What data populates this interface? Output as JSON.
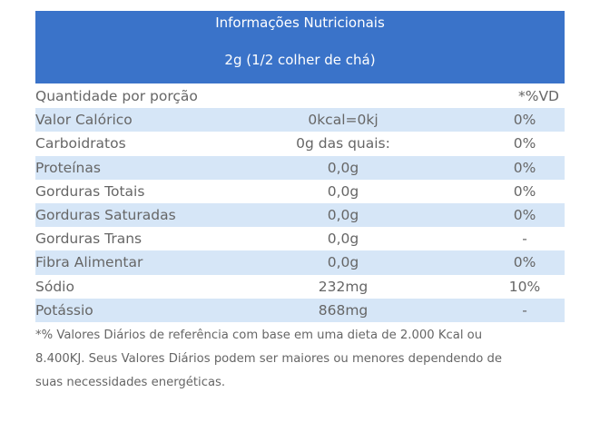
{
  "colors": {
    "header_bg": "#3a73c9",
    "header_text": "#ffffff",
    "stripe": "#d6e6f7",
    "text": "#666666"
  },
  "header": {
    "title": "Informações Nutricionais",
    "serving": "2g (1/2 colher de chá)"
  },
  "table": {
    "header_row": {
      "label": "Quantidade por porção",
      "amount": "",
      "dv": "*%VD"
    },
    "rows": [
      {
        "label": "Valor Calórico",
        "amount": "0kcal=0kj",
        "dv": "0%"
      },
      {
        "label": "Carboidratos",
        "amount": "0g das quais:",
        "dv": "0%"
      },
      {
        "label": "Proteínas",
        "amount": "0,0g",
        "dv": "0%"
      },
      {
        "label": "Gorduras Totais",
        "amount": "0,0g",
        "dv": "0%"
      },
      {
        "label": "Gorduras Saturadas",
        "amount": "0,0g",
        "dv": "0%"
      },
      {
        "label": "Gorduras Trans",
        "amount": "0,0g",
        "dv": "-"
      },
      {
        "label": "Fibra Alimentar",
        "amount": "0,0g",
        "dv": "0%"
      },
      {
        "label": "Sódio",
        "amount": "232mg",
        "dv": "10%"
      },
      {
        "label": "Potássio",
        "amount": "868mg",
        "dv": "-"
      }
    ]
  },
  "footnote": {
    "line1": "*% Valores Diários de referência com base em uma dieta de 2.000 Kcal ou",
    "line2": "8.400KJ. Seus Valores Diários podem ser maiores ou menores dependendo de",
    "line3": "suas necessidades energéticas."
  }
}
